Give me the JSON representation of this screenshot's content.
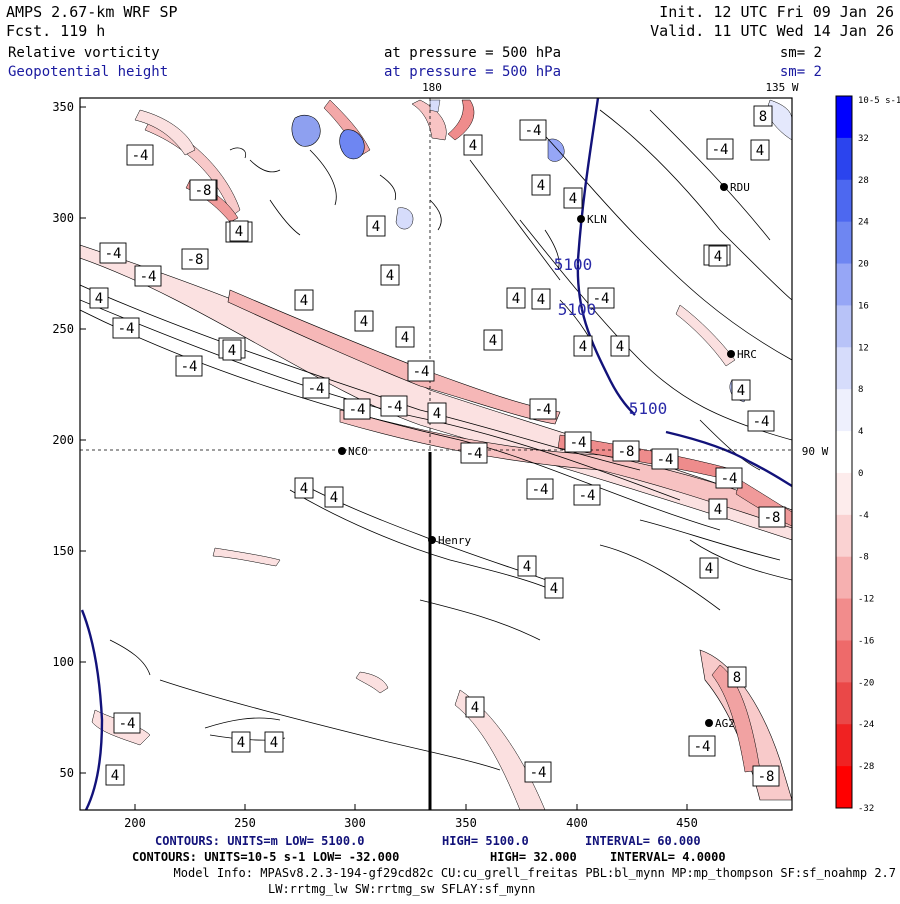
{
  "header": {
    "title": "AMPS 2.67-km WRF SP",
    "forecast": "Fcst.  119 h",
    "init": "Init. 12 UTC Fri 09 Jan 26",
    "valid": "Valid. 11 UTC Wed 14 Jan 26",
    "field1_name": "Relative vorticity",
    "field1_level": "at pressure =  500 hPa",
    "field1_smooth": "sm= 2",
    "field2_name": "Geopotential height",
    "field2_level": "at pressure =  500 hPa",
    "field2_smooth": "sm= 2"
  },
  "map": {
    "meridian_label": "180",
    "corner_label": "135 W",
    "parallel_label": "90 W",
    "x_ticks": [
      "200",
      "250",
      "300",
      "350",
      "400",
      "450"
    ],
    "y_ticks": [
      "350",
      "300",
      "250",
      "200",
      "150",
      "100",
      "50"
    ],
    "stations": [
      {
        "name": "KLN"
      },
      {
        "name": "RDU"
      },
      {
        "name": "HRC"
      },
      {
        "name": "NCO"
      },
      {
        "name": "Henry"
      },
      {
        "name": "AG2"
      }
    ],
    "height_contour_labels": [
      "5100",
      "5100",
      "5100"
    ],
    "vorticity_labels": [
      "-4",
      "-8",
      "-4",
      "-4",
      "-4",
      "4",
      "-8",
      "-4",
      "4",
      "-4",
      "4",
      "-4",
      "4",
      "-4",
      "-4",
      "-8",
      "4",
      "-4",
      "4",
      "-4",
      "4",
      "4",
      "4",
      "-8",
      "-4",
      "4",
      "4",
      "8",
      "-8",
      "-4",
      "4",
      "-4",
      "4",
      "4",
      "-4",
      "-4",
      "4",
      "-4",
      "4",
      "-8",
      "-4",
      "-4",
      "4",
      "4",
      "-4",
      "4",
      "4",
      "-4",
      "4",
      "4",
      "4",
      "-4",
      "-8",
      "4",
      "-4",
      "4",
      "4",
      "-4",
      "8",
      "4",
      "4",
      "4",
      "4",
      "-4",
      "-8",
      "-4"
    ]
  },
  "colorbar": {
    "unit": "10-5 s-1",
    "ticks": [
      "32",
      "28",
      "24",
      "20",
      "16",
      "12",
      "8",
      "4",
      "0",
      "-4",
      "-8",
      "-12",
      "-16",
      "-20",
      "-24",
      "-28",
      "-32"
    ],
    "colors": [
      "#0000ff",
      "#2b44ee",
      "#4d68f0",
      "#6e86f2",
      "#96a6f6",
      "#b8c3f8",
      "#d6dcfb",
      "#eef0fd",
      "#ffffff",
      "#fdecec",
      "#fad2d2",
      "#f6b0b0",
      "#f28c8c",
      "#ee6a6a",
      "#ea4848",
      "#f02222",
      "#ff0000"
    ]
  },
  "footer": {
    "line1_a": "CONTOURS:  UNITS=m  LOW=  5100.0",
    "line1_b": "HIGH=  5100.0",
    "line1_c": "INTERVAL=   60.000",
    "line2_a": "CONTOURS:  UNITS=10-5 s-1   LOW=  -32.000",
    "line2_b": "HIGH=  32.000",
    "line2_c": "INTERVAL=   4.0000",
    "line3": "Model Info: MPASv8.2.3-194-gf29cd82c CU:cu_grell_freitas PBL:bl_mynn MP:mp_thompson SF:sf_noahmp 2.7",
    "line4": "LW:rrtmg_lw SW:rrtmg_sw SFLAY:sf_mynn"
  }
}
